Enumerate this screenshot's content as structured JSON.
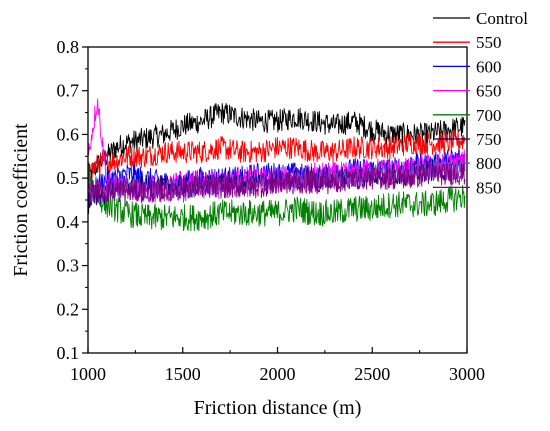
{
  "chart_data": {
    "type": "line",
    "xlabel": "Friction distance (m)",
    "ylabel": "Friction coefficient",
    "xlim": [
      1000,
      3000
    ],
    "ylim": [
      0.1,
      0.8
    ],
    "x_ticks": [
      1000,
      1500,
      2000,
      2500,
      3000
    ],
    "x_tick_labels": [
      "1000",
      "1500",
      "2000",
      "2500",
      "3000"
    ],
    "y_ticks": [
      0.1,
      0.2,
      0.3,
      0.4,
      0.5,
      0.6,
      0.7,
      0.8
    ],
    "y_tick_labels": [
      "0.1",
      "0.2",
      "0.3",
      "0.4",
      "0.5",
      "0.6",
      "0.7",
      "0.8"
    ],
    "grid": false,
    "legend_position": "top-right, outside plot area",
    "x": [
      1000,
      1050,
      1100,
      1150,
      1200,
      1300,
      1400,
      1500,
      1600,
      1700,
      1800,
      1900,
      2000,
      2100,
      2200,
      2300,
      2400,
      2500,
      2600,
      2700,
      2800,
      2900,
      3000
    ],
    "series": [
      {
        "name": "Control",
        "color": "#000000",
        "noise": 0.012,
        "values": [
          0.5,
          0.53,
          0.55,
          0.57,
          0.58,
          0.59,
          0.6,
          0.62,
          0.63,
          0.65,
          0.64,
          0.63,
          0.63,
          0.64,
          0.63,
          0.62,
          0.63,
          0.61,
          0.6,
          0.6,
          0.6,
          0.61,
          0.62
        ]
      },
      {
        "name": "550",
        "color": "#ff0000",
        "noise": 0.012,
        "values": [
          0.51,
          0.53,
          0.54,
          0.54,
          0.55,
          0.55,
          0.56,
          0.56,
          0.56,
          0.57,
          0.56,
          0.56,
          0.57,
          0.57,
          0.56,
          0.56,
          0.57,
          0.57,
          0.57,
          0.58,
          0.58,
          0.58,
          0.59
        ]
      },
      {
        "name": "600",
        "color": "#0000ff",
        "noise": 0.012,
        "values": [
          0.46,
          0.48,
          0.5,
          0.5,
          0.51,
          0.5,
          0.49,
          0.49,
          0.5,
          0.5,
          0.5,
          0.51,
          0.51,
          0.51,
          0.5,
          0.51,
          0.52,
          0.52,
          0.52,
          0.53,
          0.53,
          0.54,
          0.55
        ]
      },
      {
        "name": "650",
        "color": "#ff00ff",
        "noise": 0.012,
        "values": [
          0.55,
          0.68,
          0.49,
          0.48,
          0.48,
          0.48,
          0.48,
          0.49,
          0.49,
          0.49,
          0.5,
          0.5,
          0.5,
          0.5,
          0.51,
          0.51,
          0.51,
          0.52,
          0.52,
          0.52,
          0.53,
          0.53,
          0.54
        ]
      },
      {
        "name": "700",
        "color": "#008000",
        "noise": 0.014,
        "values": [
          0.5,
          0.46,
          0.44,
          0.43,
          0.42,
          0.41,
          0.41,
          0.41,
          0.41,
          0.42,
          0.42,
          0.42,
          0.42,
          0.43,
          0.42,
          0.42,
          0.43,
          0.43,
          0.44,
          0.44,
          0.44,
          0.45,
          0.46
        ]
      },
      {
        "name": "750",
        "color": "#000080",
        "noise": 0.012,
        "values": [
          0.44,
          0.46,
          0.47,
          0.48,
          0.48,
          0.48,
          0.48,
          0.48,
          0.48,
          0.49,
          0.49,
          0.49,
          0.49,
          0.5,
          0.5,
          0.5,
          0.5,
          0.51,
          0.51,
          0.51,
          0.52,
          0.52,
          0.53
        ]
      },
      {
        "name": "800",
        "color": "#9933cc",
        "noise": 0.012,
        "values": [
          0.47,
          0.47,
          0.48,
          0.48,
          0.48,
          0.47,
          0.47,
          0.47,
          0.48,
          0.48,
          0.48,
          0.49,
          0.49,
          0.49,
          0.5,
          0.5,
          0.5,
          0.51,
          0.51,
          0.51,
          0.52,
          0.52,
          0.52
        ]
      },
      {
        "name": "850",
        "color": "#800080",
        "noise": 0.012,
        "values": [
          0.47,
          0.47,
          0.47,
          0.47,
          0.47,
          0.47,
          0.47,
          0.48,
          0.48,
          0.48,
          0.48,
          0.48,
          0.49,
          0.49,
          0.49,
          0.49,
          0.5,
          0.5,
          0.5,
          0.5,
          0.51,
          0.51,
          0.51
        ]
      }
    ]
  }
}
